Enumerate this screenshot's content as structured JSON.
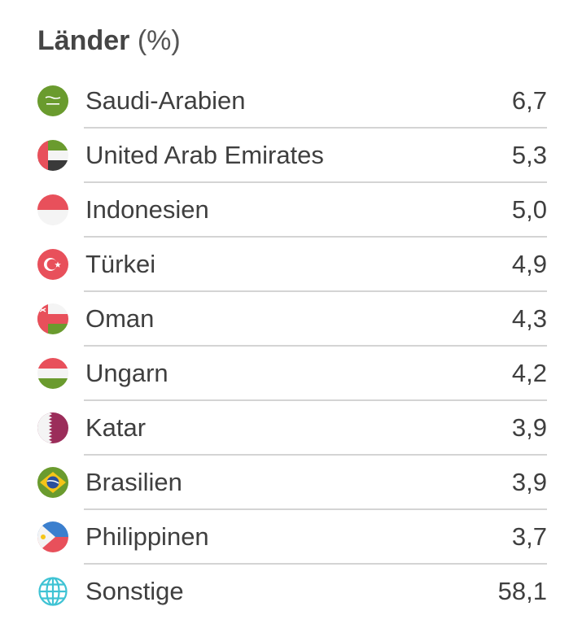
{
  "header": {
    "title": "Länder",
    "unit": "(%)"
  },
  "countries": [
    {
      "name": "Saudi-Arabien",
      "value": "6,7",
      "icon": "flag-saudi-arabia-icon"
    },
    {
      "name": "United Arab Emirates",
      "value": "5,3",
      "icon": "flag-uae-icon"
    },
    {
      "name": "Indonesien",
      "value": "5,0",
      "icon": "flag-indonesia-icon"
    },
    {
      "name": "Türkei",
      "value": "4,9",
      "icon": "flag-turkey-icon"
    },
    {
      "name": "Oman",
      "value": "4,3",
      "icon": "flag-oman-icon"
    },
    {
      "name": "Ungarn",
      "value": "4,2",
      "icon": "flag-hungary-icon"
    },
    {
      "name": "Katar",
      "value": "3,9",
      "icon": "flag-qatar-icon"
    },
    {
      "name": "Brasilien",
      "value": "3,9",
      "icon": "flag-brazil-icon"
    },
    {
      "name": "Philippinen",
      "value": "3,7",
      "icon": "flag-philippines-icon"
    },
    {
      "name": "Sonstige",
      "value": "58,1",
      "icon": "globe-icon"
    }
  ],
  "colors": {
    "text": "#3f3f3f",
    "divider": "#d4d4d4",
    "globe": "#3fc3d4"
  }
}
